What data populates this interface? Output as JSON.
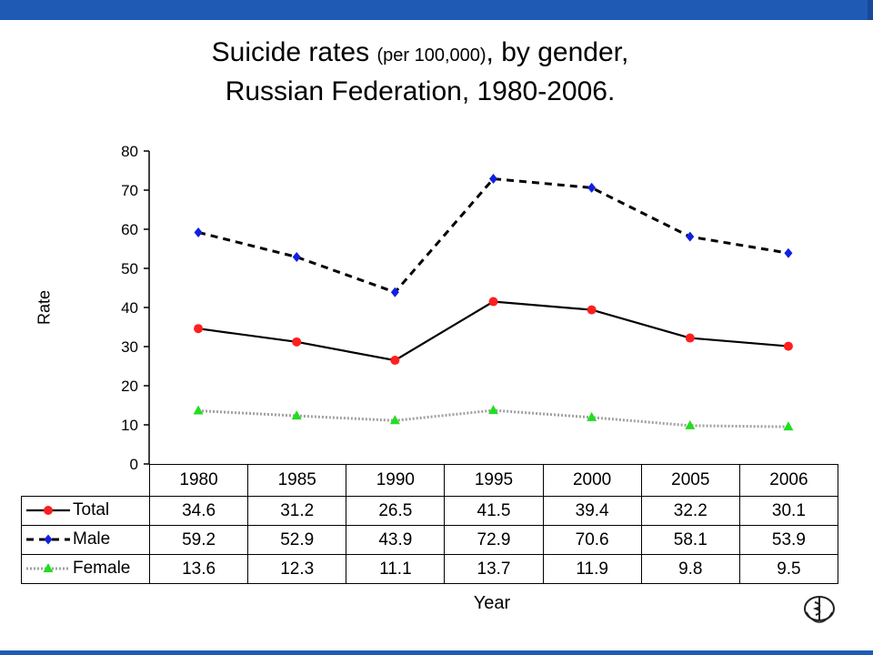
{
  "title": {
    "line1_a": "Suicide rates",
    "line1_small": "(per 100,000)",
    "line1_b": ", by gender,",
    "line2": "Russian Federation, 1980-2006."
  },
  "chart_data": {
    "type": "line",
    "title": "Suicide rates (per 100,000), by gender, Russian Federation, 1980-2006.",
    "xlabel": "Year",
    "ylabel": "Rate",
    "categories": [
      "1980",
      "1985",
      "1990",
      "1995",
      "2000",
      "2005",
      "2006"
    ],
    "ylim": [
      0,
      80
    ],
    "yticks": [
      "0",
      "10",
      "20",
      "30",
      "40",
      "50",
      "60",
      "70",
      "80"
    ],
    "grid": false,
    "legend_placement": "data-table-rows",
    "series": [
      {
        "name": "Total",
        "values": [
          34.6,
          31.2,
          26.5,
          41.5,
          39.4,
          32.2,
          30.1
        ],
        "labels": [
          "34.6",
          "31.2",
          "26.5",
          "41.5",
          "39.4",
          "32.2",
          "30.1"
        ],
        "line_color": "#000000",
        "marker_color": "#ff1f1f",
        "marker": "circle",
        "dash": "solid"
      },
      {
        "name": "Male",
        "values": [
          59.2,
          52.9,
          43.9,
          72.9,
          70.6,
          58.1,
          53.9
        ],
        "labels": [
          "59.2",
          "52.9",
          "43.9",
          "72.9",
          "70.6",
          "58.1",
          "53.9"
        ],
        "line_color": "#000000",
        "marker_color": "#1020e0",
        "marker": "diamond",
        "dash": "dashed"
      },
      {
        "name": "Female",
        "values": [
          13.6,
          12.3,
          11.1,
          13.7,
          11.9,
          9.8,
          9.5
        ],
        "labels": [
          "13.6",
          "12.3",
          "11.1",
          "13.7",
          "11.9",
          "9.8",
          "9.5"
        ],
        "line_color": "#a0a0a0",
        "marker_color": "#22dd22",
        "marker": "triangle",
        "dash": "dotted"
      }
    ]
  },
  "colors": {
    "band": "#1f5bb5",
    "axis": "#000000"
  },
  "icons": {
    "logo": "who-emblem-icon"
  }
}
